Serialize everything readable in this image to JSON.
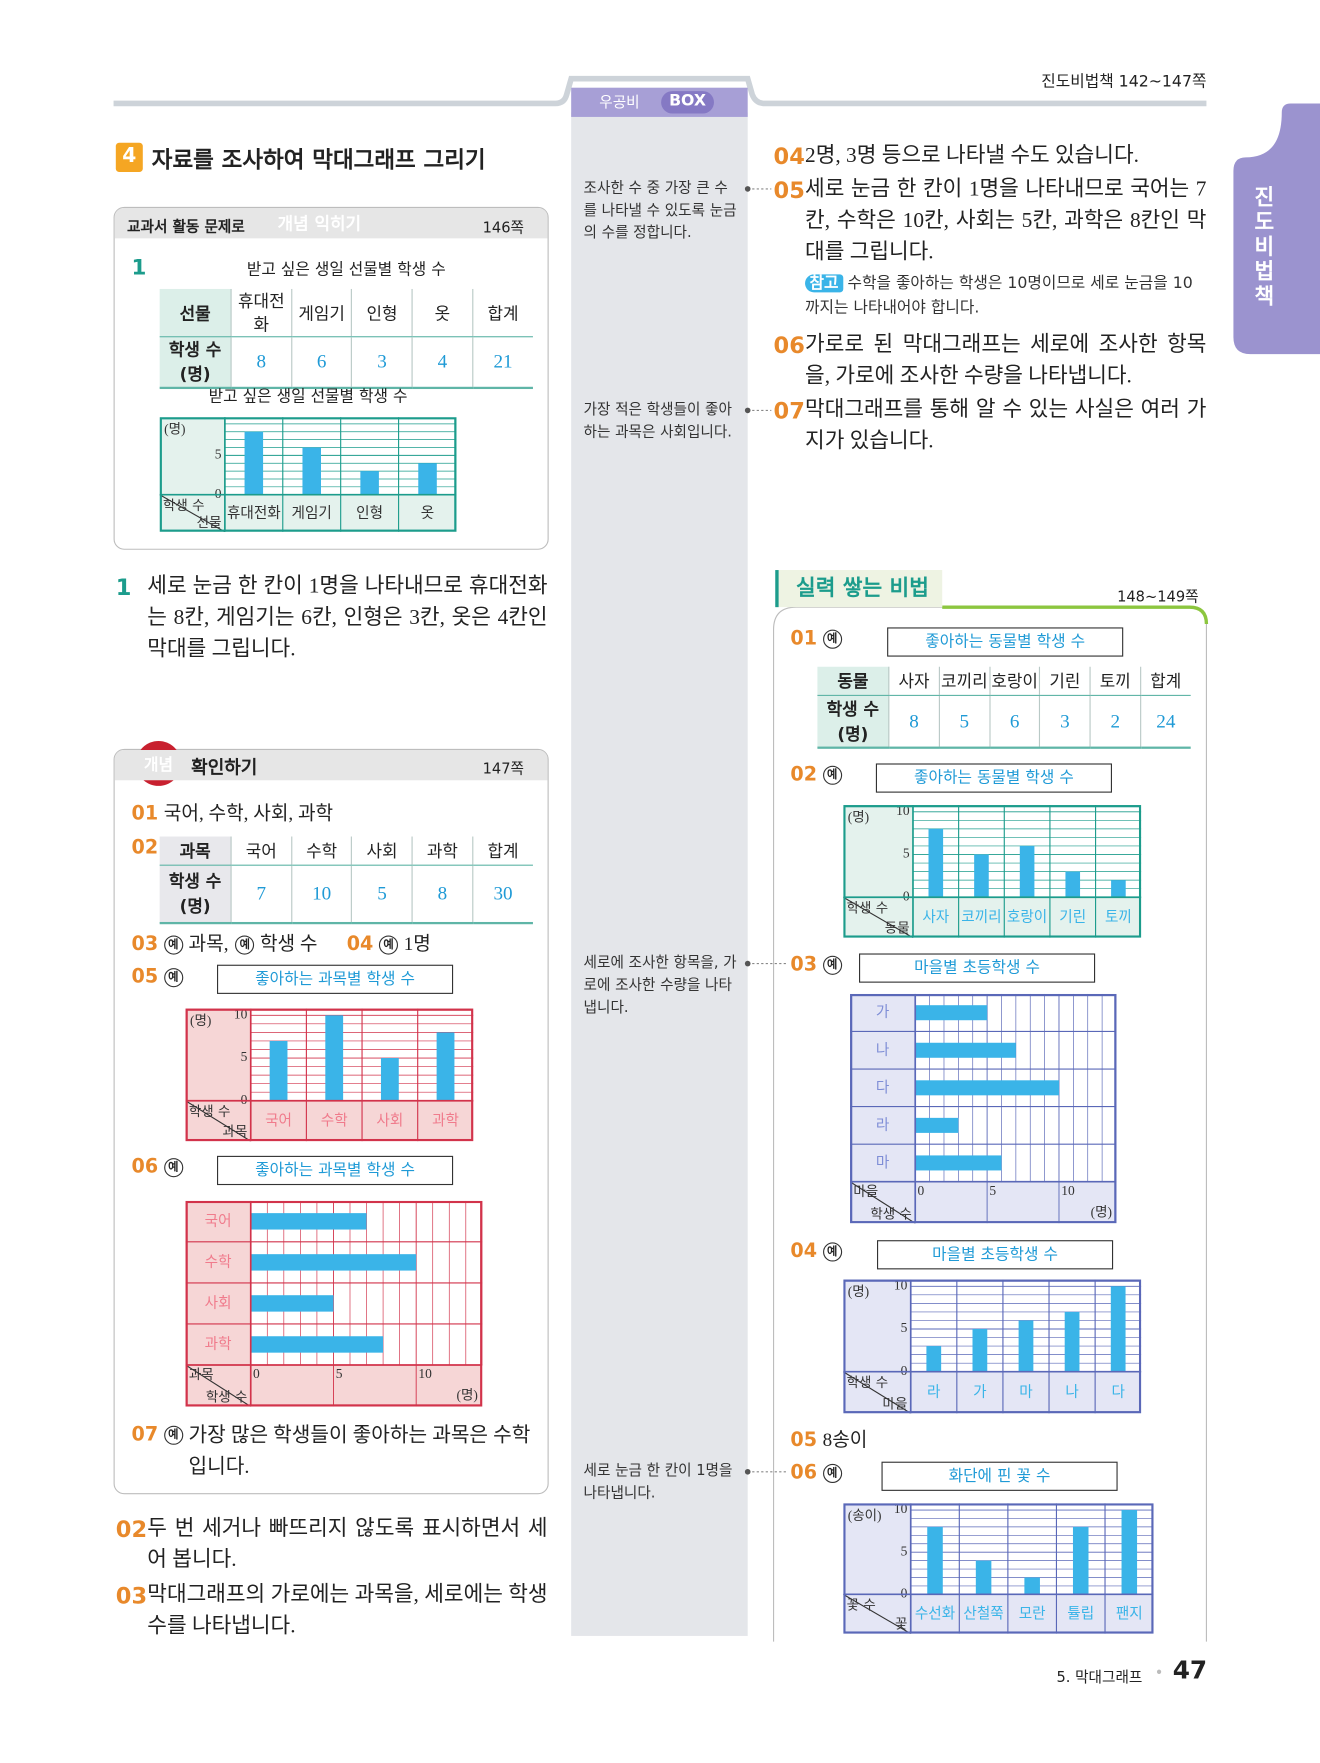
{
  "header": {
    "book_range": "진도비법책 142~147쪽",
    "box_tab": {
      "name": "우공비",
      "badge": "BOX"
    },
    "side_tab": "진도비법책"
  },
  "example_mark": "예",
  "section": {
    "number": "4",
    "title": "자료를 조사하여 막대그래프 그리기"
  },
  "practice": {
    "label": "교과서 활동 문제로",
    "badge": "개념 익히기",
    "page": "146쪽",
    "number": "1",
    "table": {
      "title": "받고 싶은 생일 선물별 학생 수",
      "header": [
        "선물",
        "휴대전화",
        "게임기",
        "인형",
        "옷",
        "합계"
      ],
      "row_label": [
        "학생 수",
        "(명)"
      ],
      "values": [
        8,
        6,
        3,
        4,
        21
      ]
    },
    "chart": {
      "type": "bar",
      "orientation": "vertical",
      "title": "받고 싶은 생일 선물별 학생 수",
      "unit": "(명)",
      "value_axis_label": "학생 수",
      "category_axis_label": "선물",
      "categories": [
        "휴대전화",
        "게임기",
        "인형",
        "옷"
      ],
      "values": [
        8,
        6,
        3,
        4
      ],
      "ylim": [
        0,
        9
      ],
      "yticks": [
        0,
        5
      ],
      "color": "#3ab4e8",
      "frame_color": "#1c9c8c",
      "panel_color": "#e4f2ed",
      "label_color": "#333333"
    }
  },
  "explanation": {
    "number": "1",
    "text": "세로 눈금 한 칸이 1명을 나타내므로 휴대전화는 8칸, 게임기는 6칸, 인형은 3칸, 옷은 4칸인 막대를 그립니다."
  },
  "check": {
    "badge": "개념",
    "title": "확인하기",
    "page": "147쪽",
    "a01": {
      "number": "01",
      "text": "국어, 수학, 사회, 과학"
    },
    "a02": {
      "number": "02",
      "table": {
        "header": [
          "과목",
          "국어",
          "수학",
          "사회",
          "과학",
          "합계"
        ],
        "row_label": [
          "학생 수",
          "(명)"
        ],
        "values": [
          7,
          10,
          5,
          8,
          30
        ]
      }
    },
    "a03": {
      "number": "03",
      "parts": [
        "과목,",
        "학생 수"
      ]
    },
    "a04": {
      "number": "04",
      "text": "1명"
    },
    "a05": {
      "number": "05",
      "chart": {
        "type": "bar",
        "orientation": "vertical",
        "title": "좋아하는 과목별 학생 수",
        "unit": "(명)",
        "value_axis_label": "학생 수",
        "category_axis_label": "과목",
        "categories": [
          "국어",
          "수학",
          "사회",
          "과학"
        ],
        "values": [
          7,
          10,
          5,
          8
        ],
        "ylim": [
          0,
          10
        ],
        "yticks": [
          0,
          5,
          10
        ],
        "color": "#3ab4e8",
        "frame_color": "#d2334b",
        "panel_color": "#f6d6d6",
        "label_color": "#f07b8c"
      }
    },
    "a06": {
      "number": "06",
      "chart": {
        "type": "bar",
        "orientation": "horizontal",
        "title": "좋아하는 과목별 학생 수",
        "unit": "(명)",
        "value_axis_label": "학생 수",
        "category_axis_label": "과목",
        "categories": [
          "국어",
          "수학",
          "사회",
          "과학"
        ],
        "values": [
          7,
          10,
          5,
          8
        ],
        "xlim": [
          0,
          14
        ],
        "xticks": [
          0,
          5,
          10
        ],
        "color": "#3ab4e8",
        "frame_color": "#d2334b",
        "panel_color": "#f6d6d6",
        "label_color": "#f07b8c"
      }
    },
    "a07": {
      "number": "07",
      "text": "가장 많은 학생들이 좋아하는 과목은 수학입니다."
    }
  },
  "box_notes": [
    "조사한 수 중 가장 큰 수를 나타낼 수 있도록 눈금의 수를 정합니다.",
    "가장 적은 학생들이 좋아하는 과목은 사회입니다.",
    "세로에 조사한 항목을, 가로에 조사한 수량을 나타냅니다.",
    "세로 눈금 한 칸이 1명을 나타냅니다."
  ],
  "solutions_left": [
    {
      "number": "02",
      "text": "두 번 세거나 빠뜨리지 않도록 표시하면서 세어 봅니다."
    },
    {
      "number": "03",
      "text": "막대그래프의 가로에는 과목을, 세로에는 학생 수를 나타냅니다."
    }
  ],
  "solutions_right": [
    {
      "number": "04",
      "text": "2명, 3명 등으로 나타낼 수도 있습니다."
    },
    {
      "number": "05",
      "text": "세로 눈금 한 칸이 1명을 나타내므로 국어는 7칸, 수학은 10칸, 사회는 5칸, 과학은 8칸인 막대를 그립니다.",
      "note": {
        "label": "참고",
        "text": "수학을 좋아하는 학생은 10명이므로 세로 눈금을 10까지는 나타내어야 합니다."
      }
    },
    {
      "number": "06",
      "text": "가로로 된 막대그래프는 세로에 조사한 항목을, 가로에 조사한 수량을 나타냅니다."
    },
    {
      "number": "07",
      "text": "막대그래프를 통해 알 수 있는 사실은 여러 가지가 있습니다."
    }
  ],
  "skills": {
    "title": "실력 쌓는 비법",
    "page": "148~149쪽",
    "b01": {
      "number": "01",
      "table": {
        "title": "좋아하는 동물별 학생 수",
        "header": [
          "동물",
          "사자",
          "코끼리",
          "호랑이",
          "기린",
          "토끼",
          "합계"
        ],
        "row_label": [
          "학생 수",
          "(명)"
        ],
        "values": [
          8,
          5,
          6,
          3,
          2,
          24
        ]
      }
    },
    "b02": {
      "number": "02",
      "chart": {
        "type": "bar",
        "orientation": "vertical",
        "title": "좋아하는 동물별 학생 수",
        "unit": "(명)",
        "value_axis_label": "학생 수",
        "category_axis_label": "동물",
        "categories": [
          "사자",
          "코끼리",
          "호랑이",
          "기린",
          "토끼"
        ],
        "values": [
          8,
          5,
          6,
          3,
          2
        ],
        "ylim": [
          0,
          10
        ],
        "yticks": [
          0,
          5,
          10
        ],
        "color": "#3ab4e8",
        "frame_color": "#1c9c8c",
        "panel_color": "#e4f2ed",
        "label_color": "#3ab4e8"
      }
    },
    "b03": {
      "number": "03",
      "chart": {
        "type": "bar",
        "orientation": "horizontal",
        "title": "마을별 초등학생 수",
        "unit": "(명)",
        "value_axis_label": "학생 수",
        "category_axis_label": "마을",
        "categories": [
          "가",
          "나",
          "다",
          "라",
          "마"
        ],
        "values": [
          5,
          7,
          10,
          3,
          6
        ],
        "xlim": [
          0,
          14
        ],
        "xticks": [
          0,
          5,
          10
        ],
        "color": "#3ab4e8",
        "frame_color": "#5a68b8",
        "panel_color": "#e4e6f5",
        "label_color": "#7f8ed6"
      }
    },
    "b04": {
      "number": "04",
      "chart": {
        "type": "bar",
        "orientation": "vertical",
        "title": "마을별 초등학생 수",
        "unit": "(명)",
        "value_axis_label": "학생 수",
        "category_axis_label": "마을",
        "categories": [
          "라",
          "가",
          "마",
          "나",
          "다"
        ],
        "values": [
          3,
          5,
          6,
          7,
          10
        ],
        "ylim": [
          0,
          10
        ],
        "yticks": [
          0,
          5,
          10
        ],
        "color": "#3ab4e8",
        "frame_color": "#5a68b8",
        "panel_color": "#e4e6f5",
        "label_color": "#3ab4e8"
      }
    },
    "b05": {
      "number": "05",
      "text": "8송이"
    },
    "b06": {
      "number": "06",
      "chart": {
        "type": "bar",
        "orientation": "vertical",
        "title": "화단에 핀 꽃 수",
        "unit": "(송이)",
        "value_axis_label": "꽃 수",
        "category_axis_label": "꽃",
        "categories": [
          "수선화",
          "산철쭉",
          "모란",
          "튤립",
          "팬지"
        ],
        "values": [
          8,
          4,
          2,
          8,
          10
        ],
        "ylim": [
          0,
          10
        ],
        "yticks": [
          0,
          5,
          10
        ],
        "color": "#3ab4e8",
        "frame_color": "#5a68b8",
        "panel_color": "#e4e6f5",
        "label_color": "#3ab4e8"
      }
    }
  },
  "footer": {
    "chapter": "5. 막대그래프",
    "page": "47"
  }
}
